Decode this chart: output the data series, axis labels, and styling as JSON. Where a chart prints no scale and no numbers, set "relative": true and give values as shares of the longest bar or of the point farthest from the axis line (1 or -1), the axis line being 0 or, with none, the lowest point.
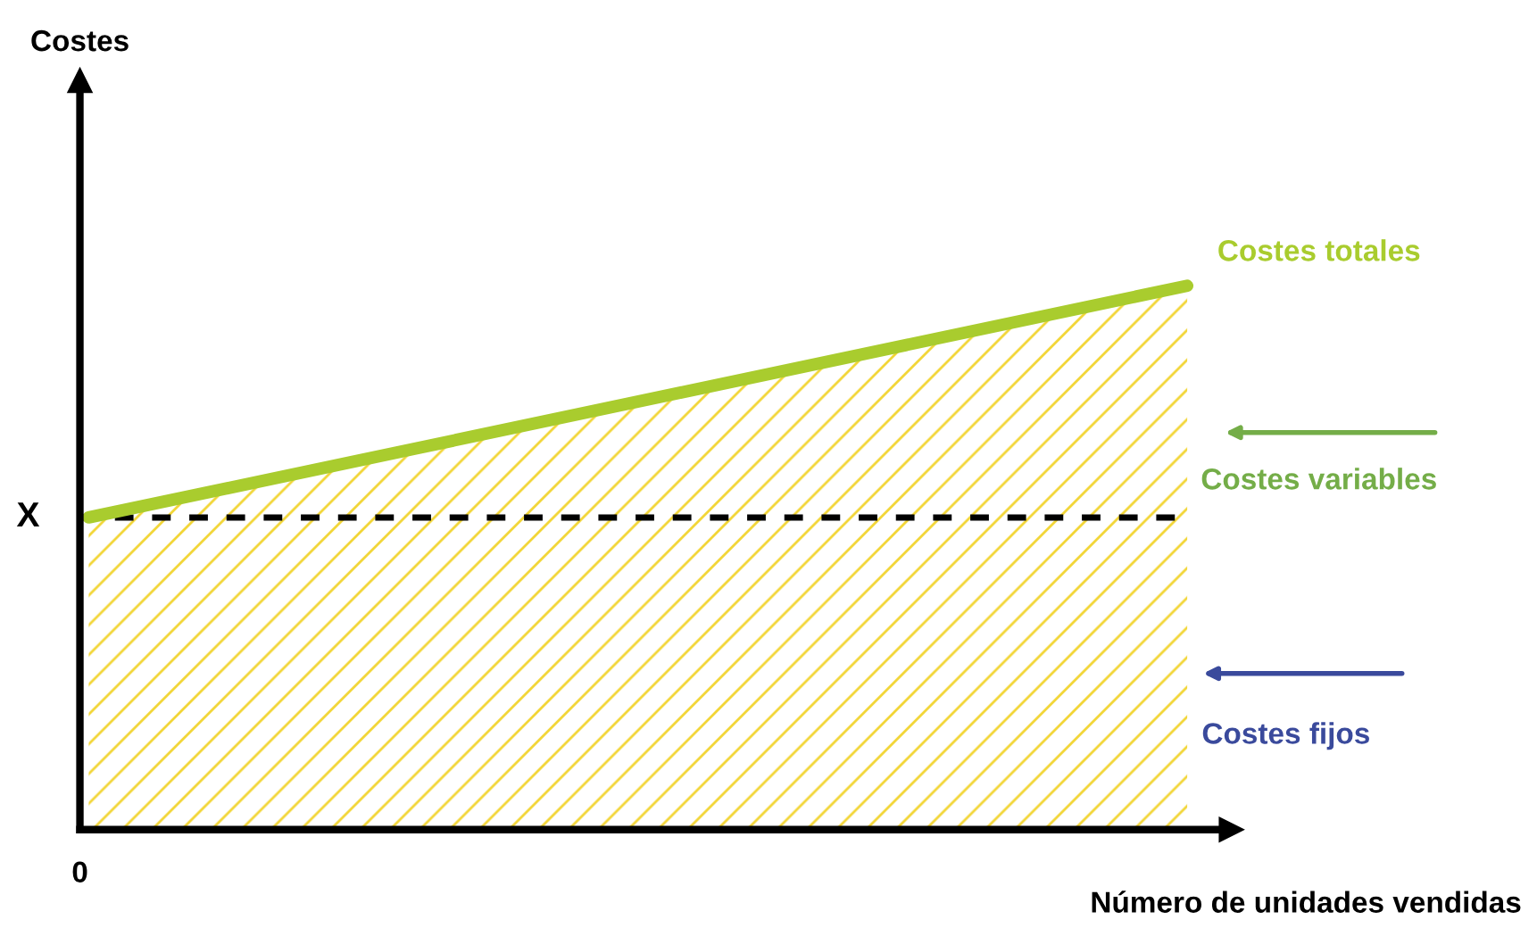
{
  "chart_data": {
    "type": "line",
    "relative": true,
    "xlabel": "Número de unidades vendidas",
    "categories": [
      null,
      null
    ],
    "series": [
      {
        "name": "Costes totales",
        "color": "#a9cc2e",
        "values": [
          0.574,
          1
        ]
      }
    ],
    "ref_lines": [
      {
        "axis": "y",
        "value": 0.574,
        "label": "X",
        "color": "#000000",
        "line_style": "dashed"
      }
    ],
    "bands": [
      {
        "axis": "y",
        "from": 0,
        "to": 0.574,
        "label": "Costes fijos",
        "color": "#3a4a9c"
      }
    ],
    "annotations": [
      "Costes variables",
      "0",
      "Costes"
    ],
    "legend": false
  }
}
